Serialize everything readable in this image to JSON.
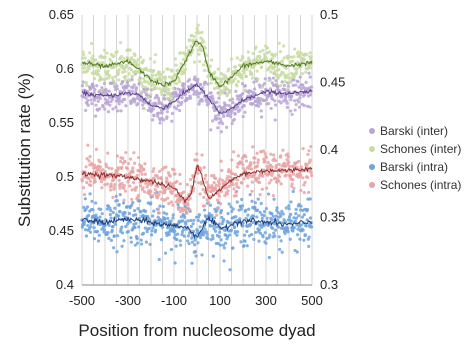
{
  "chart_data": {
    "type": "scatter",
    "xlabel": "Position from nucleosome dyad",
    "ylabel": "Substitution rate (%)",
    "xlim": [
      -500,
      500
    ],
    "ylim_left": [
      0.4,
      0.65
    ],
    "ylim_right": [
      0.3,
      0.5
    ],
    "x_ticks": [
      "-500",
      "-300",
      "-100",
      "100",
      "300",
      "500"
    ],
    "y_ticks_left": [
      "0.4",
      "0.45",
      "0.5",
      "0.55",
      "0.6",
      "0.65"
    ],
    "y_ticks_right": [
      "0.3",
      "0.35",
      "0.4",
      "0.45",
      "0.5"
    ],
    "vertical_gridlines_every": 50,
    "legend_position": "right",
    "series": [
      {
        "name": "Barski (inter)",
        "axis": "right",
        "color": "#b9a6d6",
        "line_color": "#5b3f8c",
        "x": [
          -500,
          -400,
          -300,
          -250,
          -200,
          -150,
          -100,
          -50,
          0,
          50,
          100,
          150,
          200,
          300,
          400,
          500
        ],
        "y": [
          0.442,
          0.44,
          0.442,
          0.441,
          0.433,
          0.431,
          0.436,
          0.443,
          0.449,
          0.438,
          0.427,
          0.43,
          0.437,
          0.443,
          0.442,
          0.443
        ],
        "spread": 0.006
      },
      {
        "name": "Schones (inter)",
        "axis": "left",
        "color": "#c8dca2",
        "line_color": "#4f7a22",
        "x": [
          -500,
          -400,
          -300,
          -250,
          -200,
          -150,
          -100,
          -50,
          0,
          25,
          50,
          100,
          150,
          200,
          300,
          400,
          500
        ],
        "y": [
          0.606,
          0.602,
          0.607,
          0.599,
          0.59,
          0.585,
          0.588,
          0.608,
          0.627,
          0.62,
          0.598,
          0.584,
          0.592,
          0.603,
          0.607,
          0.603,
          0.606
        ],
        "spread": 0.008
      },
      {
        "name": "Barski (intra)",
        "axis": "left",
        "color": "#6fa3de",
        "line_color": "#1f3f7a",
        "x": [
          -500,
          -400,
          -300,
          -200,
          -150,
          -100,
          -50,
          0,
          50,
          100,
          150,
          200,
          300,
          400,
          500
        ],
        "y": [
          0.46,
          0.458,
          0.461,
          0.458,
          0.456,
          0.455,
          0.454,
          0.445,
          0.462,
          0.452,
          0.456,
          0.46,
          0.458,
          0.456,
          0.458
        ],
        "spread": 0.011
      },
      {
        "name": "Schones (intra)",
        "axis": "left",
        "color": "#eaa2a2",
        "line_color": "#8a2d2d",
        "x": [
          -500,
          -400,
          -300,
          -200,
          -150,
          -100,
          -50,
          -25,
          0,
          20,
          50,
          100,
          150,
          200,
          300,
          400,
          500
        ],
        "y": [
          0.503,
          0.502,
          0.5,
          0.496,
          0.493,
          0.49,
          0.477,
          0.485,
          0.512,
          0.502,
          0.48,
          0.488,
          0.497,
          0.503,
          0.506,
          0.506,
          0.508
        ],
        "spread": 0.009
      }
    ],
    "legend_order": [
      "Barski (inter)",
      "Schones (inter)",
      "Barski (intra)",
      "Schones (intra)"
    ]
  }
}
